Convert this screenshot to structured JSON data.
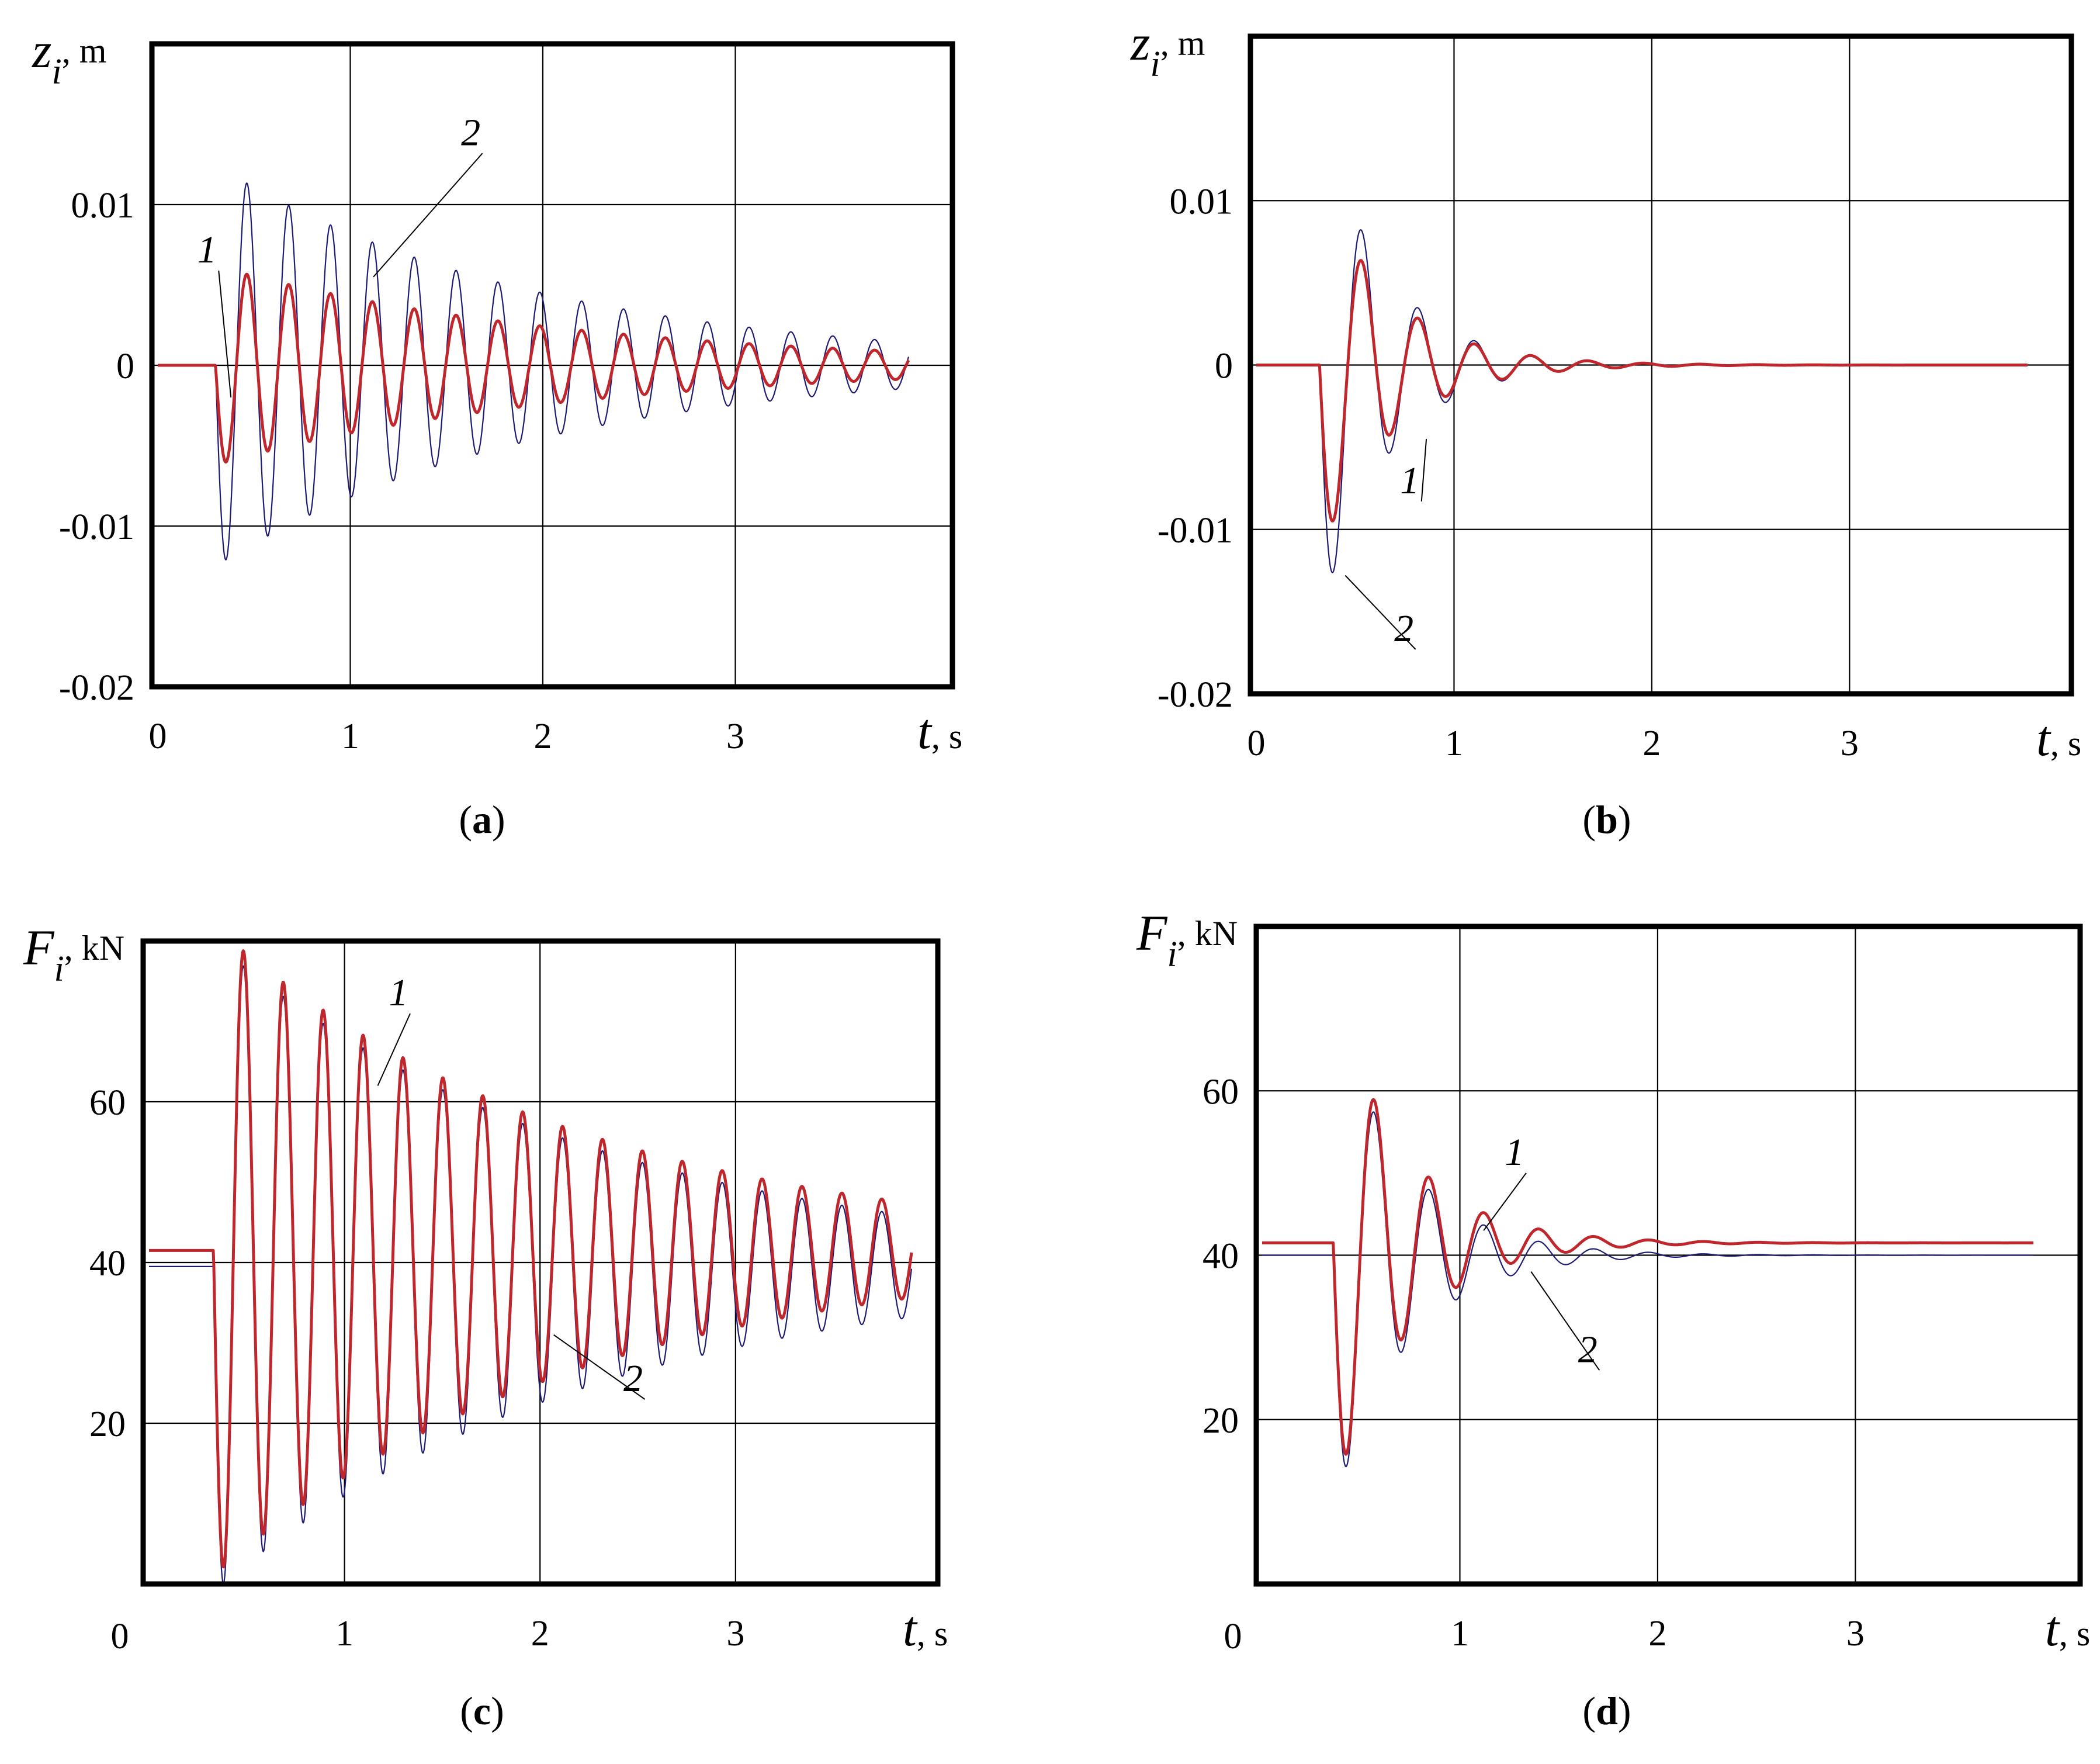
{
  "chart_data": [
    {
      "panel": "a",
      "caption": "(a)",
      "caption_letter": "a",
      "type": "line",
      "ylabel": "z",
      "ylabel_sub": "i",
      "ylabel_unit": ", m",
      "xlabel": "t",
      "xlabel_unit": ", s",
      "xlim": [
        0,
        3.9
      ],
      "ylim": [
        -0.02,
        0.02
      ],
      "xticks": [
        0,
        1,
        2,
        3
      ],
      "xtick_labels": [
        "0",
        "1",
        "2",
        "3"
      ],
      "yticks": [
        0.01,
        0,
        -0.01,
        -0.02
      ],
      "ytick_labels": [
        "0.01",
        "0",
        "-0.01",
        "-0.02"
      ],
      "grid": true,
      "series": [
        {
          "name": "1",
          "color": "#c0272d",
          "width": 5,
          "model": {
            "t0": 0.3,
            "amp": -0.0062,
            "freq": 4.6,
            "decay": 0.55,
            "offset": 0,
            "settle": 0
          }
        },
        {
          "name": "2",
          "color": "#1e1b73",
          "width": 2.2,
          "model": {
            "t0": 0.3,
            "amp": -0.0125,
            "freq": 4.6,
            "decay": 0.6,
            "offset": 0,
            "settle": 0
          }
        }
      ],
      "annotations": [
        {
          "text": "1",
          "x": 0.28,
          "y": 0.0064,
          "to_x": 0.38,
          "to_y": -0.002
        },
        {
          "text": "2",
          "x": 1.65,
          "y": 0.0137,
          "to_x": 1.12,
          "to_y": 0.0055
        }
      ]
    },
    {
      "panel": "b",
      "caption": "(b)",
      "caption_letter": "b",
      "type": "line",
      "ylabel": "z",
      "ylabel_sub": "i",
      "ylabel_unit": ", m",
      "xlabel": "t",
      "xlabel_unit": ",  s",
      "xlim": [
        0,
        3.9
      ],
      "ylim": [
        -0.02,
        0.02
      ],
      "xticks": [
        0,
        1,
        2,
        3
      ],
      "xtick_labels": [
        "0",
        "1",
        "2",
        "3"
      ],
      "yticks": [
        0.01,
        0,
        -0.01,
        -0.02
      ],
      "ytick_labels": [
        "0.01",
        "0",
        "-0.01",
        "-0.02"
      ],
      "grid": true,
      "series": [
        {
          "name": "1",
          "color": "#c0272d",
          "width": 5,
          "model": {
            "t0": 0.32,
            "amp": -0.0115,
            "freq": 3.5,
            "decay": 2.8,
            "offset": 0,
            "settle": 0
          }
        },
        {
          "name": "2",
          "color": "#1e1b73",
          "width": 2.2,
          "model": {
            "t0": 0.32,
            "amp": -0.0155,
            "freq": 3.5,
            "decay": 3.0,
            "offset": 0,
            "settle": 0
          }
        }
      ],
      "annotations": [
        {
          "text": "1",
          "x": 0.8,
          "y": -0.0078,
          "to_x": 0.86,
          "to_y": -0.0045
        },
        {
          "text": "2",
          "x": 0.77,
          "y": -0.0168,
          "to_x": 0.45,
          "to_y": -0.0128
        }
      ]
    },
    {
      "panel": "c",
      "caption": "(c)",
      "caption_letter": "c",
      "type": "line",
      "ylabel": "F",
      "ylabel_sub": "i",
      "ylabel_unit": ", kN",
      "xlabel": "t",
      "xlabel_unit": ", s",
      "xlim": [
        0,
        3.9
      ],
      "ylim": [
        0,
        80
      ],
      "xticks": [
        1,
        2,
        3
      ],
      "xtick_labels": [
        "1",
        "2",
        "3"
      ],
      "yticks": [
        60,
        40,
        20
      ],
      "ytick_labels": [
        "60",
        "40",
        "20"
      ],
      "origin_label": "0",
      "grid": true,
      "series": [
        {
          "name": "1",
          "color": "#c0272d",
          "width": 5,
          "model": {
            "t0": 0.33,
            "amp": -40.5,
            "freq": 4.9,
            "decay": 0.54,
            "offset": 41.5,
            "settle": 0
          }
        },
        {
          "name": "2",
          "color": "#1e1b73",
          "width": 2.2,
          "model": {
            "t0": 0.33,
            "amp": -40.5,
            "freq": 4.9,
            "decay": 0.52,
            "offset": 39.5,
            "settle": 0
          }
        }
      ],
      "annotations": [
        {
          "text": "1",
          "x": 1.3,
          "y": 72,
          "to_x": 1.17,
          "to_y": 62
        },
        {
          "text": "2",
          "x": 2.5,
          "y": 24,
          "to_x": 2.07,
          "to_y": 31
        }
      ]
    },
    {
      "panel": "d",
      "caption": "(d)",
      "caption_letter": "d",
      "type": "line",
      "ylabel": "F",
      "ylabel_sub": "i",
      "ylabel_unit": ", kN",
      "xlabel": "t",
      "xlabel_unit": ", s",
      "xlim": [
        0,
        3.9
      ],
      "ylim": [
        0,
        80
      ],
      "xticks": [
        1,
        2,
        3
      ],
      "xtick_labels": [
        "1",
        "2",
        "3"
      ],
      "yticks": [
        60,
        40,
        20
      ],
      "ytick_labels": [
        "60",
        "40",
        "20"
      ],
      "origin_label": "0",
      "grid": true,
      "series": [
        {
          "name": "1",
          "color": "#c0272d",
          "width": 5,
          "model": {
            "t0": 0.36,
            "amp": -31,
            "freq": 3.6,
            "decay": 2.8,
            "offset": 41.5,
            "settle": 0
          }
        },
        {
          "name": "2",
          "color": "#1e1b73",
          "width": 2.2,
          "model": {
            "t0": 0.36,
            "amp": -31,
            "freq": 3.6,
            "decay": 2.8,
            "offset": 40.0,
            "settle": 0
          }
        }
      ],
      "annotations": [
        {
          "text": "1",
          "x": 1.3,
          "y": 51,
          "to_x": 1.12,
          "to_y": 43
        },
        {
          "text": "2",
          "x": 1.67,
          "y": 27,
          "to_x": 1.36,
          "to_y": 38
        }
      ]
    }
  ]
}
